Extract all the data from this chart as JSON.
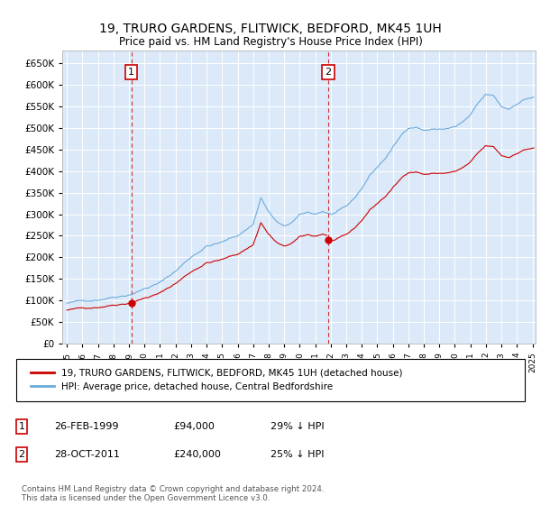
{
  "title": "19, TRURO GARDENS, FLITWICK, BEDFORD, MK45 1UH",
  "subtitle": "Price paid vs. HM Land Registry's House Price Index (HPI)",
  "plot_bg_color": "#dce9f8",
  "hpi_color": "#6aabdc",
  "price_color": "#cc0000",
  "ylim": [
    0,
    680000
  ],
  "yticks": [
    0,
    50000,
    100000,
    150000,
    200000,
    250000,
    300000,
    350000,
    400000,
    450000,
    500000,
    550000,
    600000,
    650000
  ],
  "sale1_year": 1999.15,
  "sale1_price": 94000,
  "sale2_year": 2011.83,
  "sale2_price": 240000,
  "legend_line1": "19, TRURO GARDENS, FLITWICK, BEDFORD, MK45 1UH (detached house)",
  "legend_line2": "HPI: Average price, detached house, Central Bedfordshire",
  "note1_label": "1",
  "note1_date": "26-FEB-1999",
  "note1_price": "£94,000",
  "note1_hpi": "29% ↓ HPI",
  "note2_label": "2",
  "note2_date": "28-OCT-2011",
  "note2_price": "£240,000",
  "note2_hpi": "25% ↓ HPI",
  "footer": "Contains HM Land Registry data © Crown copyright and database right 2024.\nThis data is licensed under the Open Government Licence v3.0."
}
